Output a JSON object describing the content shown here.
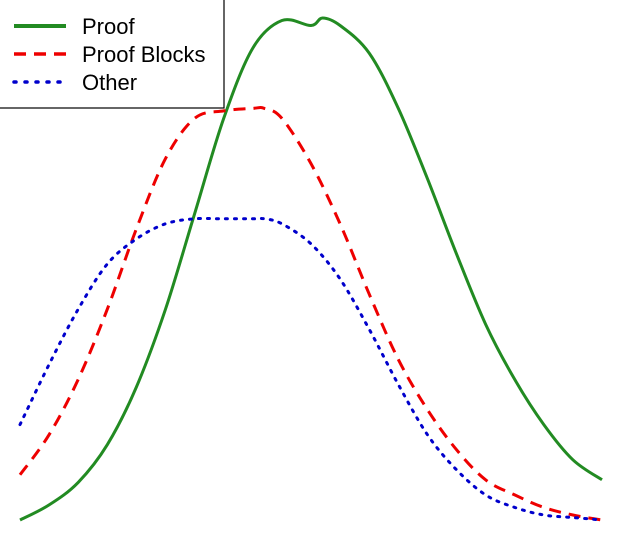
{
  "chart_data": {
    "type": "line",
    "title": "",
    "xlabel": "",
    "ylabel": "",
    "axes_visible": false,
    "grid": false,
    "legend_position": "top-left",
    "xlim": [
      0,
      1
    ],
    "ylim": [
      0,
      1
    ],
    "series": [
      {
        "name": "Proof",
        "color": "#228B22",
        "line_style": "solid",
        "x": [
          0.0,
          0.05,
          0.1,
          0.15,
          0.2,
          0.25,
          0.3,
          0.35,
          0.4,
          0.45,
          0.5,
          0.52,
          0.55,
          0.6,
          0.65,
          0.7,
          0.75,
          0.8,
          0.85,
          0.9,
          0.95,
          1.0
        ],
        "values": [
          0.0,
          0.03,
          0.075,
          0.15,
          0.265,
          0.42,
          0.61,
          0.8,
          0.94,
          0.995,
          0.985,
          1.0,
          0.985,
          0.93,
          0.82,
          0.68,
          0.53,
          0.39,
          0.28,
          0.19,
          0.12,
          0.08
        ]
      },
      {
        "name": "Proof Blocks",
        "color": "#ee0000",
        "line_style": "dashed",
        "x": [
          0.0,
          0.05,
          0.1,
          0.15,
          0.2,
          0.25,
          0.3,
          0.35,
          0.4,
          0.42,
          0.45,
          0.5,
          0.55,
          0.6,
          0.65,
          0.7,
          0.75,
          0.8,
          0.85,
          0.9,
          0.95,
          1.0
        ],
        "values": [
          0.09,
          0.17,
          0.28,
          0.42,
          0.58,
          0.72,
          0.8,
          0.815,
          0.82,
          0.82,
          0.8,
          0.71,
          0.59,
          0.45,
          0.32,
          0.22,
          0.14,
          0.08,
          0.05,
          0.025,
          0.01,
          0.0
        ]
      },
      {
        "name": "Other",
        "color": "#0000cc",
        "line_style": "dotted",
        "x": [
          0.0,
          0.05,
          0.1,
          0.15,
          0.2,
          0.25,
          0.3,
          0.35,
          0.4,
          0.42,
          0.45,
          0.5,
          0.55,
          0.6,
          0.65,
          0.7,
          0.75,
          0.8,
          0.85,
          0.9,
          0.95,
          1.0
        ],
        "values": [
          0.19,
          0.31,
          0.42,
          0.51,
          0.56,
          0.59,
          0.6,
          0.6,
          0.6,
          0.6,
          0.59,
          0.55,
          0.48,
          0.38,
          0.27,
          0.17,
          0.1,
          0.05,
          0.025,
          0.01,
          0.005,
          0.0
        ]
      }
    ]
  }
}
